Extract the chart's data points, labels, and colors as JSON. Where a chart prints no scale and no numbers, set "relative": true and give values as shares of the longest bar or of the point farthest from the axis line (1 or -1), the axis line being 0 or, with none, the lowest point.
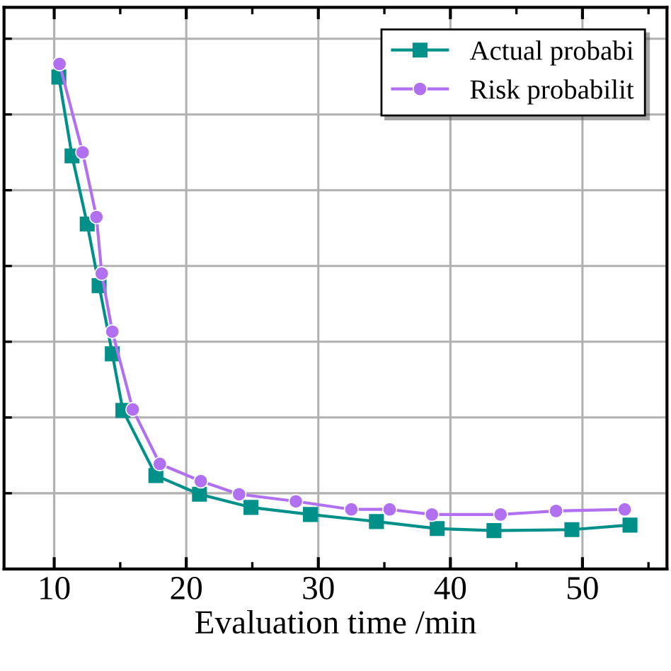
{
  "chart_data": {
    "type": "line",
    "relative": true,
    "xlabel": "Evaluation time /min",
    "xlim": [
      6.2,
      56.4
    ],
    "xticks": [
      10,
      20,
      30,
      40,
      50
    ],
    "grid": true,
    "legend": "top right",
    "tick_labels": "x",
    "line_style": "solid",
    "series": [
      {
        "name": "Actual probabi",
        "color": "#00908a",
        "marker": "square",
        "x": [
          10.35,
          11.35,
          12.5,
          13.4,
          14.4,
          15.2,
          17.7,
          21.0,
          24.9,
          29.4,
          34.4,
          39.0,
          43.3,
          49.2,
          53.6
        ],
        "values": [
          0.974,
          0.818,
          0.683,
          0.561,
          0.426,
          0.314,
          0.185,
          0.148,
          0.122,
          0.108,
          0.094,
          0.08,
          0.076,
          0.078,
          0.087
        ]
      },
      {
        "name": "Risk probabilit",
        "color": "#b070f0",
        "marker": "circle",
        "x": [
          10.4,
          12.15,
          13.2,
          13.6,
          14.4,
          15.95,
          18.0,
          21.1,
          24.0,
          28.3,
          32.5,
          35.4,
          38.6,
          43.8,
          48.0,
          53.2
        ],
        "values": [
          1,
          0.825,
          0.697,
          0.585,
          0.47,
          0.316,
          0.208,
          0.174,
          0.148,
          0.134,
          0.118,
          0.118,
          0.108,
          0.108,
          0.115,
          0.118
        ]
      }
    ]
  }
}
